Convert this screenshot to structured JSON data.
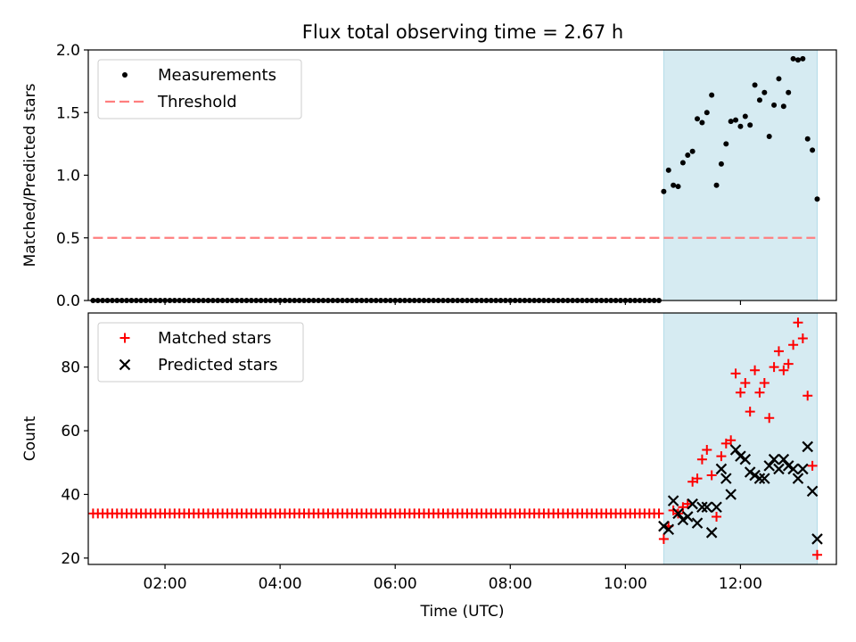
{
  "figure": {
    "title": "Flux total observing time = 2.67 h"
  },
  "chart_data": [
    {
      "type": "scatter",
      "ylabel": "Matched/Predicted stars",
      "xlabel": "",
      "xlim": [
        "00:40",
        "13:40"
      ],
      "ylim": [
        0,
        2.0
      ],
      "yticks": [
        "0.0",
        "0.5",
        "1.0",
        "1.5",
        "2.0"
      ],
      "shaded_span": {
        "start": "10:40",
        "end": "13:20",
        "color": "#add8e6"
      },
      "legend": {
        "placement": "upper-left",
        "entries": [
          "Measurements",
          "Threshold"
        ]
      },
      "threshold": {
        "name": "Threshold",
        "value": 0.5,
        "x_start": "00:45",
        "x_end": "13:18",
        "color": "#ff7f7f",
        "style": "dashed"
      },
      "series": [
        {
          "name": "Measurements",
          "color": "#000000",
          "marker": "dot",
          "flat": {
            "x_start": "00:45",
            "x_end": "10:35",
            "count": 119,
            "value": 0
          },
          "x": [
            "10:40",
            "10:45",
            "10:50",
            "10:55",
            "11:00",
            "11:05",
            "11:10",
            "11:15",
            "11:20",
            "11:25",
            "11:30",
            "11:35",
            "11:40",
            "11:45",
            "11:50",
            "11:55",
            "12:00",
            "12:05",
            "12:10",
            "12:15",
            "12:20",
            "12:25",
            "12:30",
            "12:35",
            "12:40",
            "12:45",
            "12:50",
            "12:55",
            "13:00",
            "13:05",
            "13:10",
            "13:15",
            "13:20"
          ],
          "y": [
            0.87,
            1.04,
            0.92,
            0.91,
            1.1,
            1.16,
            1.19,
            1.45,
            1.42,
            1.5,
            1.64,
            0.92,
            1.09,
            1.25,
            1.43,
            1.44,
            1.39,
            1.47,
            1.4,
            1.72,
            1.6,
            1.66,
            1.31,
            1.56,
            1.77,
            1.55,
            1.66,
            1.93,
            1.92,
            1.93,
            1.29,
            1.2,
            0.81
          ]
        }
      ]
    },
    {
      "type": "scatter",
      "ylabel": "Count",
      "xlabel": "Time (UTC)",
      "xlim": [
        "00:40",
        "13:40"
      ],
      "ylim": [
        18,
        97
      ],
      "yticks": [
        "20",
        "40",
        "60",
        "80"
      ],
      "xticks": [
        "02:00",
        "04:00",
        "06:00",
        "08:00",
        "10:00",
        "12:00"
      ],
      "shaded_span": {
        "start": "10:40",
        "end": "13:20",
        "color": "#add8e6"
      },
      "legend": {
        "placement": "upper-left",
        "entries": [
          "Matched stars",
          "Predicted stars"
        ]
      },
      "series": [
        {
          "name": "Matched stars",
          "color": "#ff0000",
          "marker": "plus",
          "flat": {
            "x_start": "00:45",
            "x_end": "10:35",
            "count": 119,
            "value": 34
          },
          "x": [
            "10:40",
            "10:45",
            "10:50",
            "10:55",
            "11:00",
            "11:05",
            "11:10",
            "11:15",
            "11:20",
            "11:25",
            "11:30",
            "11:35",
            "11:40",
            "11:45",
            "11:50",
            "11:55",
            "12:00",
            "12:05",
            "12:10",
            "12:15",
            "12:20",
            "12:25",
            "12:30",
            "12:35",
            "12:40",
            "12:45",
            "12:50",
            "12:55",
            "13:00",
            "13:05",
            "13:10",
            "13:15",
            "13:20"
          ],
          "y": [
            26,
            30,
            35,
            34,
            36,
            37,
            44,
            45,
            51,
            54,
            46,
            33,
            52,
            56,
            57,
            78,
            72,
            75,
            66,
            79,
            72,
            75,
            64,
            80,
            85,
            79,
            81,
            87,
            94,
            89,
            71,
            49,
            21
          ]
        },
        {
          "name": "Predicted stars",
          "color": "#000000",
          "marker": "x",
          "x": [
            "10:40",
            "10:45",
            "10:50",
            "10:55",
            "11:00",
            "11:05",
            "11:10",
            "11:15",
            "11:20",
            "11:25",
            "11:30",
            "11:35",
            "11:40",
            "11:45",
            "11:50",
            "11:55",
            "12:00",
            "12:05",
            "12:10",
            "12:15",
            "12:20",
            "12:25",
            "12:30",
            "12:35",
            "12:40",
            "12:45",
            "12:50",
            "12:55",
            "13:00",
            "13:05",
            "13:10",
            "13:15",
            "13:20"
          ],
          "y": [
            30,
            29,
            38,
            34,
            32,
            33,
            37,
            31,
            36,
            36,
            28,
            36,
            48,
            45,
            40,
            54,
            52,
            51,
            47,
            46,
            45,
            45,
            49,
            51,
            48,
            51,
            49,
            48,
            45,
            48,
            55,
            41,
            26
          ]
        }
      ]
    }
  ]
}
